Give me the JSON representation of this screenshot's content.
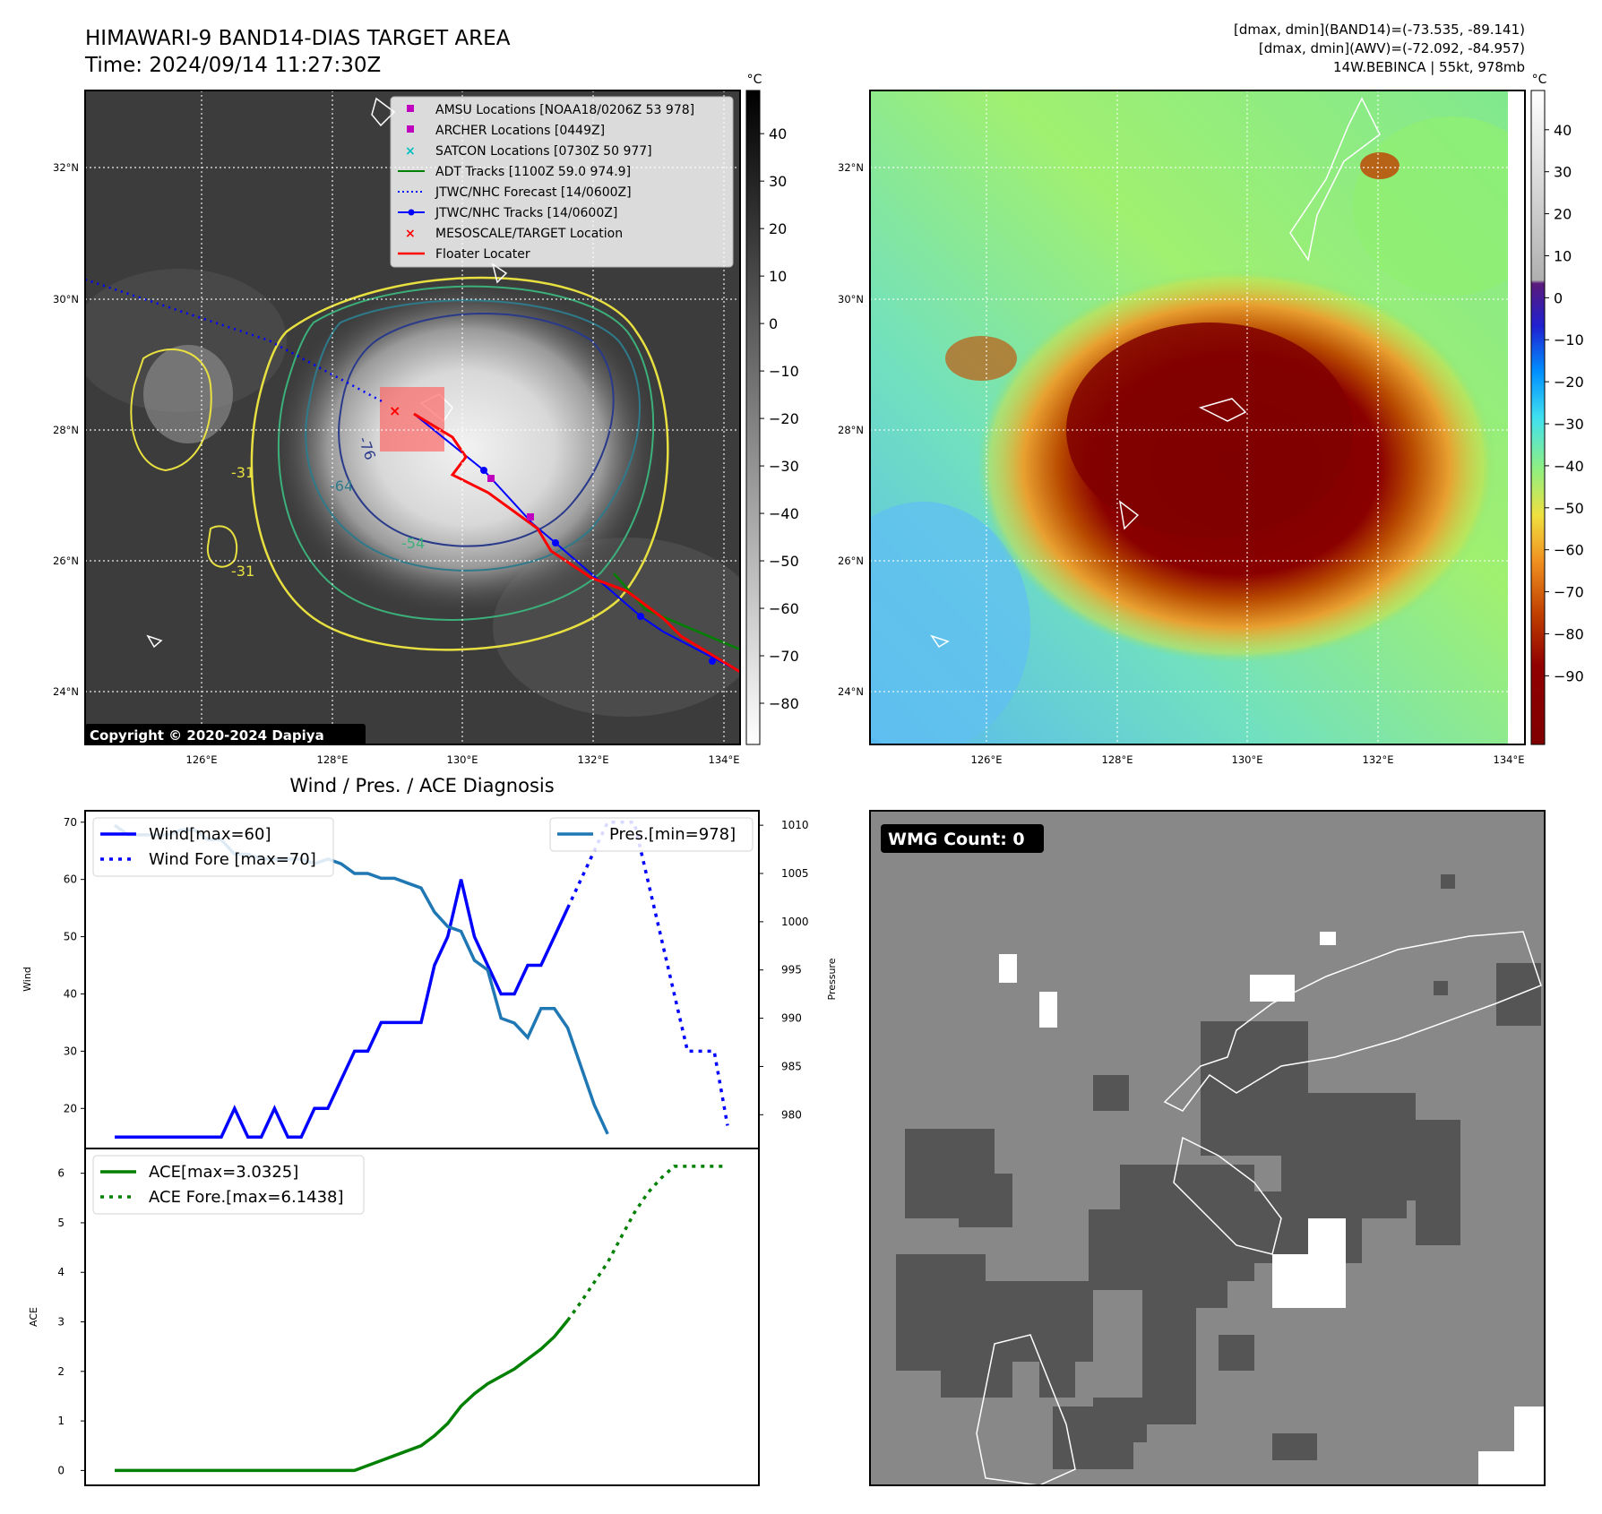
{
  "header": {
    "title_line1": "HIMAWARI-9 BAND14-DIAS TARGET AREA",
    "title_line2": "Time: 2024/09/14 11:27:30Z",
    "info_line1": "[dmax, dmin](BAND14)=(-73.535, -89.141)",
    "info_line2": "[dmax, dmin](AWV)=(-72.092, -84.957)",
    "info_line3": "14W.BEBINCA | 55kt, 978mb"
  },
  "ir_panel": {
    "copyright": "Copyright © 2020-2024 Dapiya",
    "contour_labels": [
      "-76",
      "-64",
      "-54",
      "-31",
      "-31"
    ],
    "legend": [
      {
        "label": "AMSU Locations [NOAA18/0206Z 53 978]",
        "color": "#bf00bf",
        "marker": "square"
      },
      {
        "label": "ARCHER Locations [0449Z]",
        "color": "#bf00bf",
        "marker": "square"
      },
      {
        "label": "SATCON Locations [0730Z 50 977]",
        "color": "#00bfbf",
        "marker": "x"
      },
      {
        "label": "ADT Tracks [1100Z 59.0 974.9]",
        "color": "#008000",
        "marker": "line"
      },
      {
        "label": "JTWC/NHC Forecast [14/0600Z]",
        "color": "#0000ff",
        "marker": "dotted"
      },
      {
        "label": "JTWC/NHC Tracks [14/0600Z]",
        "color": "#0000ff",
        "marker": "line-dot"
      },
      {
        "label": "MESOSCALE/TARGET Location",
        "color": "#ff0000",
        "marker": "x"
      },
      {
        "label": "Floater Locater",
        "color": "#ff0000",
        "marker": "line"
      }
    ]
  },
  "map_axes": {
    "lon_labels": [
      "126°E",
      "128°E",
      "130°E",
      "132°E",
      "134°E"
    ],
    "lat_labels": [
      "32°N",
      "30°N",
      "28°N",
      "26°N",
      "24°N"
    ]
  },
  "colorbar_gray": {
    "unit": "°C",
    "ticks": [
      "40",
      "30",
      "20",
      "10",
      "0",
      "−10",
      "−20",
      "−30",
      "−40",
      "−50",
      "−60",
      "−70",
      "−80"
    ]
  },
  "colorbar_color": {
    "unit": "°C",
    "ticks": [
      "40",
      "30",
      "20",
      "10",
      "0",
      "−10",
      "−20",
      "−30",
      "−40",
      "−50",
      "−60",
      "−70",
      "−80",
      "−90"
    ]
  },
  "wmg": {
    "label": "WMG Count: 0"
  },
  "chart_data": [
    {
      "type": "line",
      "title": "Wind / Pres. / ACE Diagnosis",
      "ylabel": "Wind",
      "ylabel_right": "Pressure",
      "ylim": [
        13,
        72
      ],
      "ylim_right": [
        976.5,
        1011.5
      ],
      "yticks": [
        20,
        30,
        40,
        50,
        60,
        70
      ],
      "yticks_right": [
        980,
        985,
        990,
        995,
        1000,
        1005,
        1010
      ],
      "grid": false,
      "series": [
        {
          "name": "Wind[max=60]",
          "axis": "left",
          "style": "solid",
          "color": "#0000ff",
          "values": [
            15,
            15,
            15,
            15,
            15,
            15,
            15,
            15,
            15,
            20,
            15,
            15,
            20,
            15,
            15,
            20,
            20,
            25,
            30,
            30,
            35,
            35,
            35,
            35,
            45,
            50,
            60,
            50,
            45,
            40,
            40,
            45,
            45,
            50,
            55
          ]
        },
        {
          "name": "Wind Fore [max=70]",
          "axis": "left",
          "style": "dotted",
          "color": "#0000ff",
          "values": [
            null,
            null,
            null,
            null,
            null,
            null,
            null,
            null,
            null,
            null,
            null,
            null,
            null,
            null,
            null,
            null,
            null,
            null,
            null,
            null,
            null,
            null,
            null,
            null,
            null,
            null,
            null,
            null,
            null,
            null,
            null,
            null,
            null,
            null,
            55,
            60,
            65,
            70,
            70,
            70,
            60,
            50,
            40,
            30,
            30,
            30,
            17
          ]
        },
        {
          "name": "Pres.[min=978]",
          "axis": "right",
          "style": "solid",
          "color": "#1f77b4",
          "values": [
            1010,
            1009,
            1009,
            1009,
            1009,
            1009.5,
            1009.5,
            1008.5,
            1008.5,
            1007,
            1007,
            1006.5,
            1006.5,
            1006.5,
            1006.5,
            1006,
            1006.5,
            1006,
            1005,
            1005,
            1004.5,
            1004.5,
            1004,
            1003.5,
            1001,
            999.5,
            999,
            996,
            995,
            990,
            989.5,
            988,
            991,
            991,
            989,
            985,
            981,
            978
          ]
        }
      ]
    },
    {
      "type": "line",
      "ylabel": "ACE",
      "ylim": [
        -0.3,
        6.5
      ],
      "yticks": [
        0,
        1,
        2,
        3,
        4,
        5,
        6
      ],
      "grid": false,
      "series": [
        {
          "name": "ACE[max=3.0325]",
          "style": "solid",
          "color": "#008000",
          "values": [
            0,
            0,
            0,
            0,
            0,
            0,
            0,
            0,
            0,
            0,
            0,
            0,
            0,
            0,
            0,
            0,
            0,
            0,
            0,
            0.1,
            0.2,
            0.3,
            0.4,
            0.5,
            0.7,
            0.95,
            1.3,
            1.55,
            1.75,
            1.9,
            2.05,
            2.25,
            2.45,
            2.7,
            3.03
          ]
        },
        {
          "name": "ACE Fore.[max=6.1438]",
          "style": "dotted",
          "color": "#008000",
          "values": [
            null,
            null,
            null,
            null,
            null,
            null,
            null,
            null,
            null,
            null,
            null,
            null,
            null,
            null,
            null,
            null,
            null,
            null,
            null,
            null,
            null,
            null,
            null,
            null,
            null,
            null,
            null,
            null,
            null,
            null,
            null,
            null,
            null,
            null,
            3.03,
            3.4,
            3.8,
            4.2,
            4.7,
            5.2,
            5.6,
            5.9,
            6.14,
            6.14,
            6.14,
            6.14,
            6.14
          ]
        }
      ]
    }
  ]
}
